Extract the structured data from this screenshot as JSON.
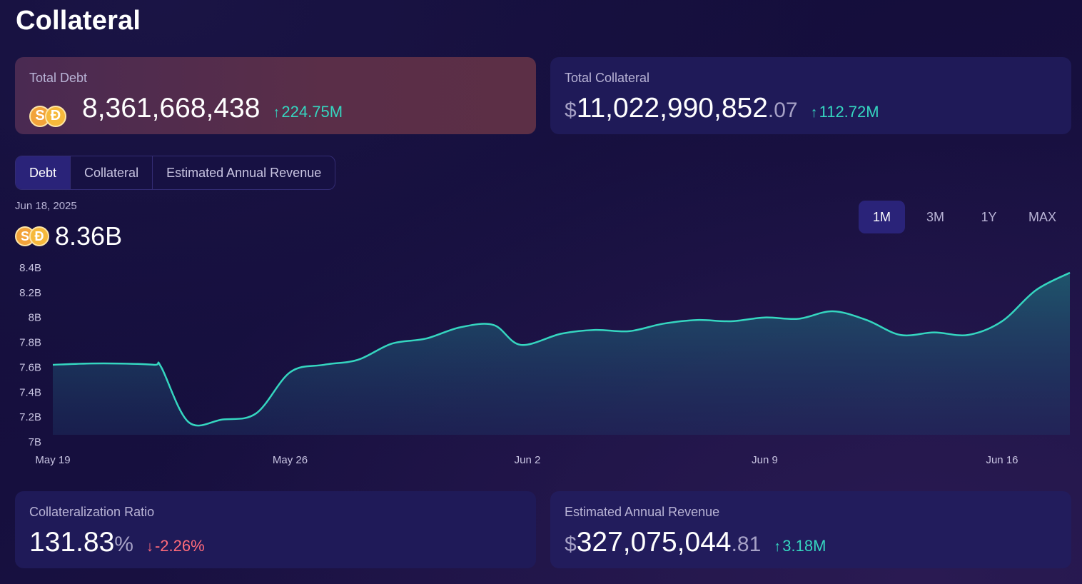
{
  "page": {
    "title": "Collateral"
  },
  "total_debt": {
    "label": "Total Debt",
    "value": "8,361,668,438",
    "change": "224.75M",
    "change_arrow": "↑"
  },
  "total_collateral": {
    "label": "Total Collateral",
    "currency": "$",
    "value": "11,022,990,852",
    "decimals": ".07",
    "change": "112.72M",
    "change_arrow": "↑"
  },
  "tabs": [
    {
      "label": "Debt",
      "active": true
    },
    {
      "label": "Collateral",
      "active": false
    },
    {
      "label": "Estimated Annual Revenue",
      "active": false
    }
  ],
  "chart_header": {
    "date": "Jun 18, 2025",
    "value": "8.36B"
  },
  "time_ranges": [
    {
      "label": "1M",
      "active": true
    },
    {
      "label": "3M",
      "active": false
    },
    {
      "label": "1Y",
      "active": false
    },
    {
      "label": "MAX",
      "active": false
    }
  ],
  "coins": {
    "s_symbol": "S",
    "d_symbol": "Đ"
  },
  "colors": {
    "accent": "#35d6c0",
    "negative": "#ff6b7a",
    "debt_card": "#5a2e48",
    "card": "#1f1a58"
  },
  "chart_data": {
    "type": "area",
    "x_ticks": [
      "May 19",
      "May 26",
      "Jun 2",
      "Jun 9",
      "Jun 16"
    ],
    "y_ticks": [
      "8.4B",
      "8.2B",
      "8B",
      "7.8B",
      "7.6B",
      "7.4B",
      "7.2B",
      "7B"
    ],
    "ylim": [
      7.0,
      8.4
    ],
    "y_unit": "B",
    "x_range_days": [
      0,
      30
    ],
    "points": [
      [
        0,
        7.62
      ],
      [
        1,
        7.63
      ],
      [
        2,
        7.63
      ],
      [
        3,
        7.62
      ],
      [
        3.2,
        7.6
      ],
      [
        4,
        7.16
      ],
      [
        5,
        7.18
      ],
      [
        6,
        7.23
      ],
      [
        7,
        7.56
      ],
      [
        8,
        7.62
      ],
      [
        9,
        7.66
      ],
      [
        10,
        7.79
      ],
      [
        11,
        7.83
      ],
      [
        12,
        7.92
      ],
      [
        13,
        7.94
      ],
      [
        13.8,
        7.78
      ],
      [
        15,
        7.87
      ],
      [
        16,
        7.9
      ],
      [
        17,
        7.89
      ],
      [
        18,
        7.95
      ],
      [
        19,
        7.98
      ],
      [
        20,
        7.97
      ],
      [
        21,
        8.0
      ],
      [
        22,
        7.99
      ],
      [
        23,
        8.05
      ],
      [
        24,
        7.98
      ],
      [
        25,
        7.86
      ],
      [
        26,
        7.88
      ],
      [
        27,
        7.86
      ],
      [
        28,
        7.97
      ],
      [
        29,
        8.22
      ],
      [
        30,
        8.36
      ]
    ],
    "grid": false,
    "legend": "none"
  }
}
